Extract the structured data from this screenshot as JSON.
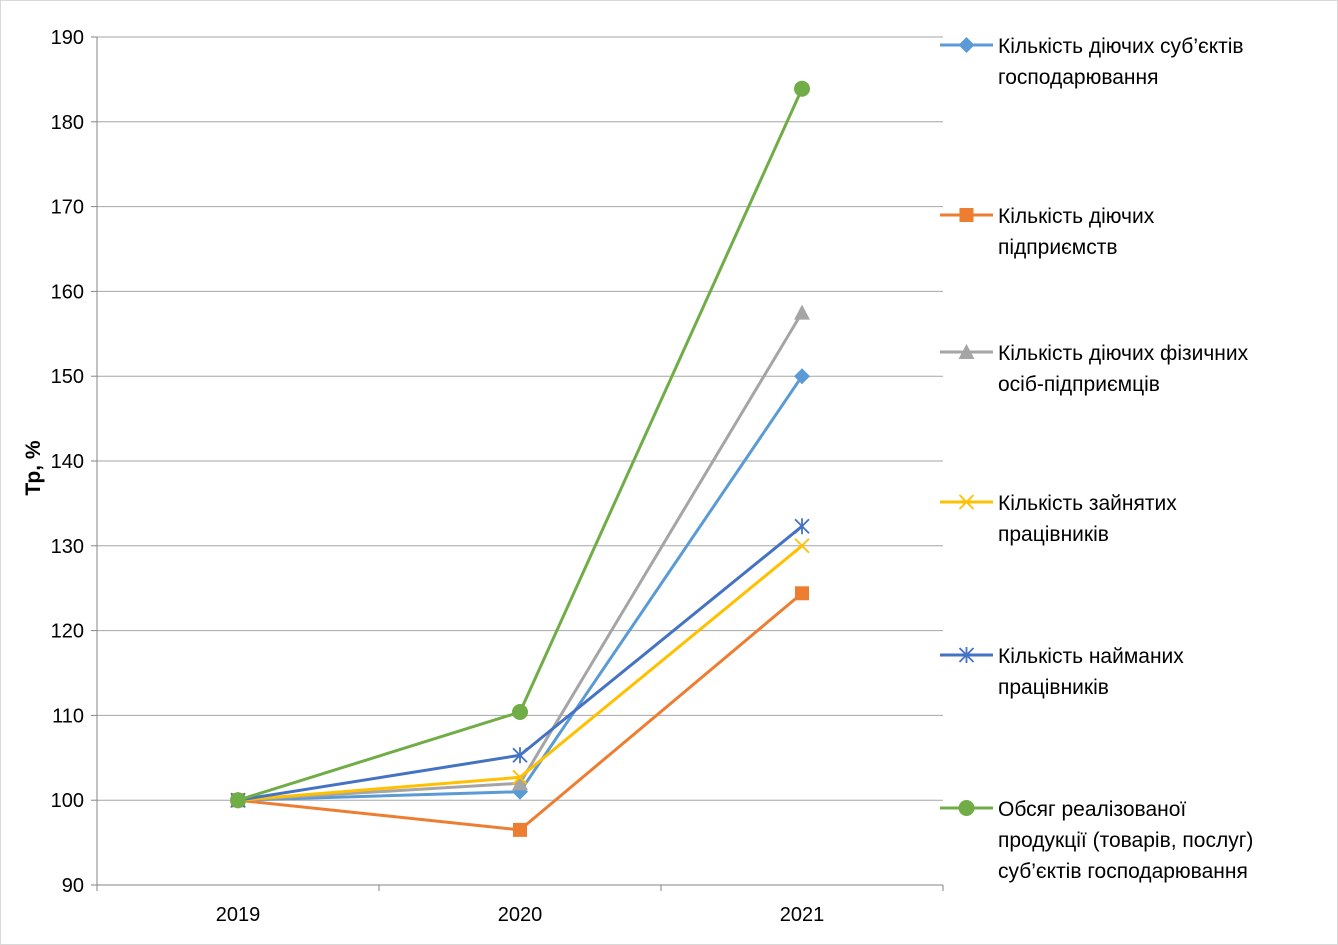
{
  "chart_data": {
    "type": "line",
    "title": "",
    "xlabel": "",
    "ylabel": "Тр, %",
    "categories": [
      "2019",
      "2020",
      "2021"
    ],
    "ylim": [
      90,
      190
    ],
    "yticks": [
      90,
      100,
      110,
      120,
      130,
      140,
      150,
      160,
      170,
      180,
      190
    ],
    "grid": "horizontal",
    "legend_position": "right",
    "series": [
      {
        "name": "Кількість діючих суб’єктів господарювання",
        "legend_lines": [
          "Кількість діючих суб’єктів",
          "господарювання"
        ],
        "values": [
          100,
          101.0,
          150.0
        ],
        "color": "#5B9BD5",
        "marker": "diamond"
      },
      {
        "name": "Кількість діючих підприємств",
        "legend_lines": [
          "Кількість діючих",
          "підприємств"
        ],
        "values": [
          100,
          96.5,
          124.4
        ],
        "color": "#ED7D31",
        "marker": "square"
      },
      {
        "name": "Кількість діючих фізичних осіб-підприємців",
        "legend_lines": [
          "Кількість діючих фізичних",
          "осіб-підприємців"
        ],
        "values": [
          100,
          102.0,
          157.5
        ],
        "color": "#A5A5A5",
        "marker": "triangle"
      },
      {
        "name": "Кількість зайнятих працівників",
        "legend_lines": [
          "Кількість зайнятих",
          "працівників"
        ],
        "values": [
          100,
          102.7,
          130.0
        ],
        "color": "#FFC000",
        "marker": "x"
      },
      {
        "name": "Кількість найманих працівників",
        "legend_lines": [
          "Кількість найманих",
          "працівників"
        ],
        "values": [
          100,
          105.3,
          132.3
        ],
        "color": "#4472C4",
        "marker": "star"
      },
      {
        "name": "Обсяг реалізованої продукції (товарів, послуг) суб’єктів господарювання",
        "legend_lines": [
          "Обсяг реалізованої",
          "продукції (товарів, послуг)",
          "суб’єктів господарювання"
        ],
        "values": [
          100,
          110.4,
          183.9
        ],
        "color": "#70AD47",
        "marker": "circle"
      }
    ]
  }
}
